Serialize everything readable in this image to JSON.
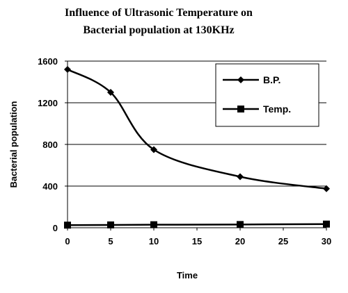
{
  "chart_data": {
    "type": "line",
    "title_lines": [
      "Influence of Ultrasonic Temperature on",
      "Bacterial population at 130KHz"
    ],
    "xlabel": "Time",
    "ylabel": "Bacterial population",
    "xlim": [
      0,
      30
    ],
    "ylim": [
      0,
      1600
    ],
    "x_ticks": [
      "0",
      "5",
      "10",
      "15",
      "20",
      "25",
      "30"
    ],
    "y_ticks": [
      "0",
      "400",
      "800",
      "1200",
      "1600"
    ],
    "grid": "horizontal",
    "legend_position": "top-right",
    "series": [
      {
        "name": "B.P.",
        "marker": "diamond",
        "smooth": true,
        "color": "#000000",
        "x": [
          0,
          5,
          10,
          20,
          30
        ],
        "values": [
          1520,
          1300,
          750,
          490,
          375
        ]
      },
      {
        "name": "Temp.",
        "marker": "square",
        "smooth": false,
        "color": "#000000",
        "x": [
          0,
          5,
          10,
          20,
          30
        ],
        "values": [
          25,
          27,
          29,
          31,
          35
        ]
      }
    ]
  }
}
